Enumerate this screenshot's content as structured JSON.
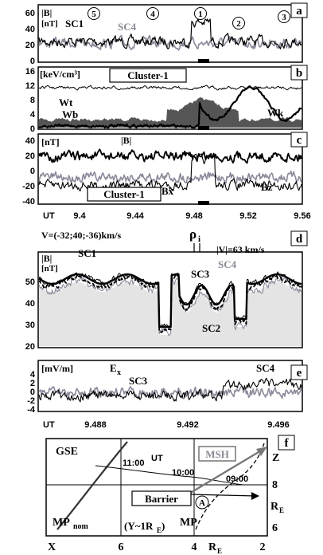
{
  "chart_data": [
    {
      "panel": "a",
      "type": "line",
      "unit_label": "|B|",
      "unit_sub": "[nT]",
      "series": [
        {
          "name": "SC1",
          "color": "#000000"
        },
        {
          "name": "SC4",
          "color": "#8a8a9a"
        }
      ],
      "region_marks": [
        "5",
        "4",
        "1",
        "2",
        "3"
      ],
      "yticks": [
        "60",
        "40",
        "20",
        "0"
      ],
      "ylim": [
        0,
        70
      ],
      "xlim": [
        9.38,
        9.56
      ]
    },
    {
      "panel": "b",
      "type": "area",
      "unit_label": "[keV/cm³]",
      "box_label": "Cluster-1",
      "series": [
        {
          "name": "Wt",
          "color": "#000000"
        },
        {
          "name": "Wb",
          "color": "#000000"
        },
        {
          "name": "Wk",
          "color": "#000000"
        }
      ],
      "yticks": [
        "16",
        "12",
        "8",
        "4",
        "0"
      ],
      "ylim": [
        0,
        17
      ],
      "xlim": [
        9.38,
        9.56
      ]
    },
    {
      "panel": "c",
      "type": "line",
      "unit_label": "[nT]",
      "box_label": "Cluster-1",
      "series": [
        {
          "name": "|B|",
          "color": "#000000"
        },
        {
          "name": "Bx",
          "color": "#000000"
        },
        {
          "name": "Bz",
          "color": "#8a8a9a"
        }
      ],
      "yticks": [
        "40",
        "20",
        "0",
        "-20",
        "-40"
      ],
      "ylim": [
        -45,
        45
      ],
      "x_label": "UT",
      "xticks": [
        "9.4",
        "9.44",
        "9.48",
        "9.52",
        "9.56"
      ],
      "xlim": [
        9.38,
        9.56
      ]
    },
    {
      "panel": "d",
      "type": "line",
      "annotation_velocity": "V=(-32;40;-36)km/s",
      "annotation_rho": "ρ",
      "annotation_rho_sub": "i",
      "annotation_speed": "|V|=63 km/s",
      "unit_label": "|B|",
      "unit_sub": "[nT]",
      "series": [
        {
          "name": "SC1",
          "color": "#000000"
        },
        {
          "name": "SC2",
          "color": "#000000"
        },
        {
          "name": "SC3",
          "color": "#000000"
        },
        {
          "name": "SC4",
          "color": "#8a8a9a"
        }
      ],
      "yticks": [
        "50",
        "40",
        "30",
        "20"
      ],
      "ylim": [
        18,
        58
      ],
      "xlim": [
        9.484,
        9.498
      ]
    },
    {
      "panel": "e",
      "type": "line",
      "unit_label": "[mV/m]",
      "quantity": "E",
      "quantity_sub": "x",
      "series": [
        {
          "name": "SC3",
          "color": "#8a8a9a"
        },
        {
          "name": "SC4",
          "color": "#000000"
        }
      ],
      "yticks": [
        "4",
        "2",
        "0",
        "-2",
        "-4"
      ],
      "ylim": [
        -5,
        5
      ],
      "x_label": "UT",
      "xticks": [
        "9.488",
        "9.492",
        "9.496"
      ],
      "xlim": [
        9.484,
        9.498
      ]
    },
    {
      "panel": "f",
      "type": "diagram",
      "frame_label": "GSE",
      "ut_labels": [
        "11:00",
        "UT",
        "10:00",
        "09:00"
      ],
      "msh_label": "MSH",
      "barrier_label": "Barrier",
      "point_label": "A",
      "mp_label": "MP",
      "mpnom_label": "MP",
      "mpnom_sub": "nom",
      "y_note": "(Y~1R",
      "y_note_sub": "E",
      "y_note_tail": ")",
      "x_axis_label": "X",
      "x_unit": "R",
      "x_unit_sub": "E",
      "xticks": [
        "6",
        "4",
        "2"
      ],
      "z_axis_label": "Z",
      "z_unit": "R",
      "z_unit_sub": "E",
      "zticks": [
        "8",
        "6"
      ]
    }
  ]
}
